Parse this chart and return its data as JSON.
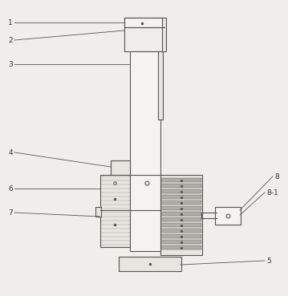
{
  "bg_color": "#f0eeea",
  "line_color": "#555555",
  "lw": 0.8,
  "fig_w": 3.59,
  "fig_h": 3.69,
  "dpi": 100
}
